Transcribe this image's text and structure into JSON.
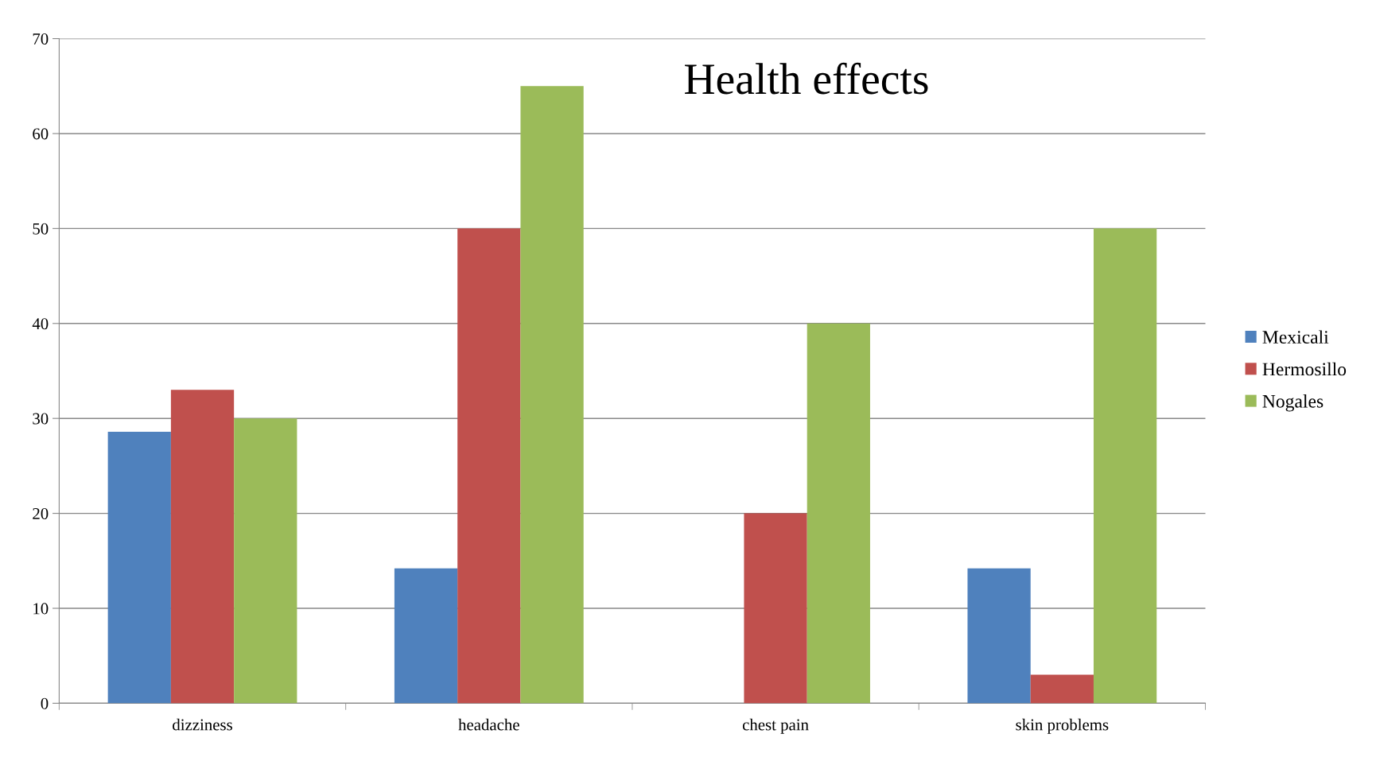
{
  "chart_data": {
    "type": "bar",
    "title": "Health effects",
    "categories": [
      "dizziness",
      "headache",
      "chest pain",
      "skin problems"
    ],
    "series": [
      {
        "name": "Mexicali",
        "color": "#4f81bd",
        "values": [
          28.6,
          14.2,
          0,
          14.2
        ]
      },
      {
        "name": "Hermosillo",
        "color": "#c0504d",
        "values": [
          33,
          50,
          20,
          3
        ]
      },
      {
        "name": "Nogales",
        "color": "#9bbb59",
        "values": [
          30,
          65,
          40,
          50
        ]
      }
    ],
    "ylim": [
      0,
      70
    ],
    "yticks": [
      0,
      10,
      20,
      30,
      40,
      50,
      60,
      70
    ],
    "grid": "y",
    "legend": "right"
  }
}
